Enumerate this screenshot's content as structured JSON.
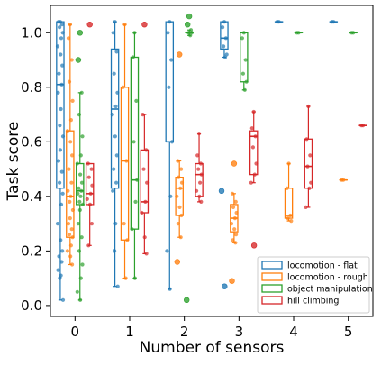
{
  "chart_data": {
    "type": "box",
    "xlabel": "Number of sensors",
    "ylabel": "Task score",
    "categories": [
      "0",
      "1",
      "2",
      "3",
      "4",
      "5"
    ],
    "xlim": [
      -0.45,
      5.45
    ],
    "ylim": [
      -0.04,
      1.1
    ],
    "y_ticks": [
      "0.0",
      "0.2",
      "0.4",
      "0.6",
      "0.8",
      "1.0"
    ],
    "grid": false,
    "legend_position": "bottom-right",
    "series": [
      {
        "name": "locomotion - flat",
        "color": "#1f77b4",
        "boxes": [
          {
            "x": 0,
            "whislo": 0.02,
            "q1": 0.43,
            "med": 0.81,
            "q3": 1.04,
            "whishi": 1.04,
            "points": [
              1.04,
              1.04,
              1.03,
              1.02,
              1.0,
              0.98,
              0.95,
              0.92,
              0.88,
              0.85,
              0.81,
              0.78,
              0.72,
              0.66,
              0.62,
              0.57,
              0.53,
              0.49,
              0.45,
              0.41,
              0.37,
              0.3,
              0.24,
              0.2,
              0.18,
              0.16,
              0.13,
              0.11,
              0.1,
              0.02
            ]
          },
          {
            "x": 1,
            "whislo": 0.07,
            "q1": 0.43,
            "med": 0.72,
            "q3": 0.94,
            "whishi": 1.04,
            "points": [
              1.04,
              1.0,
              0.93,
              0.85,
              0.78,
              0.73,
              0.7,
              0.62,
              0.55,
              0.5,
              0.45,
              0.42,
              0.3,
              0.2,
              0.07
            ]
          },
          {
            "x": 2,
            "whislo": 0.06,
            "q1": 0.6,
            "med": 0.6,
            "q3": 1.04,
            "whishi": 1.04,
            "points": [
              1.04,
              1.0,
              0.9,
              0.8,
              0.6,
              0.4,
              0.2,
              0.06
            ]
          },
          {
            "x": 3,
            "whislo": 0.91,
            "q1": 0.94,
            "med": 0.98,
            "q3": 1.04,
            "whishi": 1.04,
            "points": [
              1.04,
              1.02,
              0.98,
              0.95,
              0.92,
              0.91,
              0.42,
              0.07
            ]
          },
          {
            "x": 4,
            "whislo": 1.04,
            "q1": 1.04,
            "med": 1.04,
            "q3": 1.04,
            "whishi": 1.04,
            "points": [
              1.04,
              1.04
            ]
          },
          {
            "x": 5,
            "whislo": 1.04,
            "q1": 1.04,
            "med": 1.04,
            "q3": 1.04,
            "whishi": 1.04,
            "points": [
              1.04,
              1.04
            ]
          }
        ]
      },
      {
        "name": "locomotion - rough",
        "color": "#ff7f0e",
        "boxes": [
          {
            "x": 0,
            "whislo": 0.15,
            "q1": 0.25,
            "med": 0.4,
            "q3": 0.64,
            "whishi": 1.03,
            "points": [
              1.03,
              0.98,
              0.9,
              0.82,
              0.75,
              0.68,
              0.64,
              0.6,
              0.55,
              0.5,
              0.45,
              0.42,
              0.4,
              0.38,
              0.35,
              0.32,
              0.3,
              0.28,
              0.26,
              0.25,
              0.22,
              0.2,
              0.18,
              0.15
            ]
          },
          {
            "x": 1,
            "whislo": 0.1,
            "q1": 0.24,
            "med": 0.53,
            "q3": 0.8,
            "whishi": 1.03,
            "points": [
              1.03,
              0.8,
              0.53,
              0.3,
              0.24,
              0.1
            ]
          },
          {
            "x": 2,
            "whislo": 0.25,
            "q1": 0.33,
            "med": 0.43,
            "q3": 0.47,
            "whishi": 0.53,
            "points": [
              0.92,
              0.53,
              0.5,
              0.47,
              0.45,
              0.43,
              0.4,
              0.36,
              0.33,
              0.3,
              0.25,
              0.16
            ]
          },
          {
            "x": 3,
            "whislo": 0.23,
            "q1": 0.27,
            "med": 0.32,
            "q3": 0.37,
            "whishi": 0.41,
            "points": [
              0.52,
              0.41,
              0.38,
              0.36,
              0.34,
              0.32,
              0.3,
              0.28,
              0.26,
              0.24,
              0.23,
              0.09
            ]
          },
          {
            "x": 4,
            "whislo": 0.31,
            "q1": 0.32,
            "med": 0.33,
            "q3": 0.43,
            "whishi": 0.52,
            "points": [
              0.52,
              0.43,
              0.33,
              0.32,
              0.31
            ]
          },
          {
            "x": 5,
            "whislo": 0.46,
            "q1": 0.46,
            "med": 0.46,
            "q3": 0.46,
            "whishi": 0.46,
            "points": [
              0.46,
              0.46
            ]
          }
        ]
      },
      {
        "name": "object manipulation",
        "color": "#2ca02c",
        "boxes": [
          {
            "x": 0,
            "whislo": 0.02,
            "q1": 0.37,
            "med": 0.42,
            "q3": 0.52,
            "whishi": 0.78,
            "points": [
              1.0,
              0.9,
              0.78,
              0.7,
              0.62,
              0.55,
              0.52,
              0.48,
              0.45,
              0.43,
              0.42,
              0.41,
              0.4,
              0.38,
              0.37,
              0.35,
              0.3,
              0.25,
              0.2,
              0.15,
              0.1,
              0.05,
              0.02
            ]
          },
          {
            "x": 1,
            "whislo": 0.1,
            "q1": 0.28,
            "med": 0.46,
            "q3": 0.91,
            "whishi": 1.0,
            "points": [
              1.0,
              0.91,
              0.75,
              0.6,
              0.46,
              0.38,
              0.28,
              0.1
            ]
          },
          {
            "x": 2,
            "whislo": 0.99,
            "q1": 1.0,
            "med": 1.0,
            "q3": 1.0,
            "whishi": 1.01,
            "points": [
              1.06,
              1.03,
              1.01,
              1.0,
              1.0,
              0.99,
              0.02
            ]
          },
          {
            "x": 3,
            "whislo": 0.79,
            "q1": 0.82,
            "med": 1.0,
            "q3": 1.0,
            "whishi": 1.0,
            "points": [
              1.0,
              0.98,
              0.9,
              0.85,
              0.82,
              0.79
            ]
          },
          {
            "x": 4,
            "whislo": 1.0,
            "q1": 1.0,
            "med": 1.0,
            "q3": 1.0,
            "whishi": 1.0,
            "points": [
              1.0,
              1.0
            ]
          },
          {
            "x": 5,
            "whislo": 1.0,
            "q1": 1.0,
            "med": 1.0,
            "q3": 1.0,
            "whishi": 1.0,
            "points": [
              1.0,
              1.0
            ]
          }
        ]
      },
      {
        "name": "hill climbing",
        "color": "#d62728",
        "boxes": [
          {
            "x": 0,
            "whislo": 0.22,
            "q1": 0.37,
            "med": 0.41,
            "q3": 0.52,
            "whishi": 0.52,
            "points": [
              1.03,
              0.52,
              0.5,
              0.47,
              0.44,
              0.41,
              0.39,
              0.37,
              0.3,
              0.22
            ]
          },
          {
            "x": 1,
            "whislo": 0.19,
            "q1": 0.34,
            "med": 0.38,
            "q3": 0.57,
            "whishi": 0.7,
            "points": [
              1.03,
              0.7,
              0.57,
              0.5,
              0.45,
              0.38,
              0.34,
              0.25,
              0.19
            ]
          },
          {
            "x": 2,
            "whislo": 0.38,
            "q1": 0.4,
            "med": 0.48,
            "q3": 0.52,
            "whishi": 0.63,
            "points": [
              0.63,
              0.55,
              0.52,
              0.5,
              0.48,
              0.45,
              0.42,
              0.4,
              0.38
            ]
          },
          {
            "x": 3,
            "whislo": 0.45,
            "q1": 0.48,
            "med": 0.62,
            "q3": 0.64,
            "whishi": 0.71,
            "points": [
              0.71,
              0.65,
              0.62,
              0.58,
              0.52,
              0.48,
              0.45,
              0.22
            ]
          },
          {
            "x": 4,
            "whislo": 0.36,
            "q1": 0.43,
            "med": 0.51,
            "q3": 0.61,
            "whishi": 0.73,
            "points": [
              0.73,
              0.61,
              0.55,
              0.51,
              0.45,
              0.43,
              0.36
            ]
          },
          {
            "x": 5,
            "whislo": 0.66,
            "q1": 0.66,
            "med": 0.66,
            "q3": 0.66,
            "whishi": 0.66,
            "points": [
              0.66,
              0.66
            ]
          }
        ]
      }
    ]
  }
}
